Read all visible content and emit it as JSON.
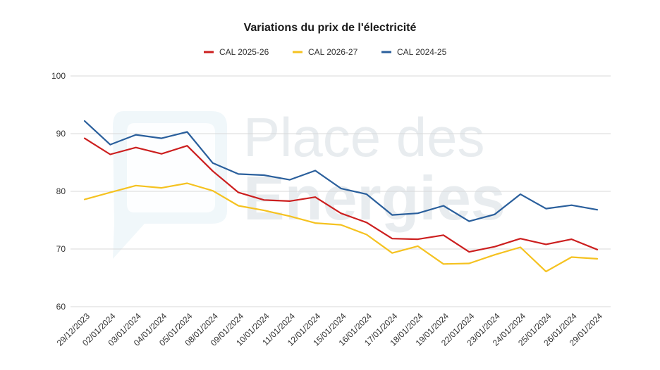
{
  "watermark": {
    "line1": "Place des",
    "line2": "Energies"
  },
  "chart_data": {
    "type": "line",
    "title": "Variations du prix de l'électricité",
    "xlabel": "",
    "ylabel": "",
    "ylim": [
      60,
      100
    ],
    "yticks": [
      60,
      70,
      80,
      90,
      100
    ],
    "grid": true,
    "legend_position": "top",
    "categories": [
      "29/12/2023",
      "02/01/2024",
      "03/01/2024",
      "04/01/2024",
      "05/01/2024",
      "08/01/2024",
      "09/01/2024",
      "10/01/2024",
      "11/01/2024",
      "12/01/2024",
      "15/01/2024",
      "16/01/2024",
      "17/01/2024",
      "18/01/2024",
      "19/01/2024",
      "22/01/2024",
      "23/01/2024",
      "24/01/2024",
      "25/01/2024",
      "26/01/2024",
      "29/01/2024"
    ],
    "series": [
      {
        "name": "CAL 2025-26",
        "color": "#cc1f1f",
        "values": [
          89.2,
          86.4,
          87.6,
          86.5,
          87.9,
          83.5,
          79.8,
          78.5,
          78.3,
          79.0,
          76.2,
          74.6,
          71.8,
          71.7,
          72.4,
          69.5,
          70.4,
          71.8,
          70.8,
          71.7,
          69.9
        ]
      },
      {
        "name": "CAL 2026-27",
        "color": "#f5c220",
        "values": [
          78.6,
          79.8,
          81.0,
          80.6,
          81.4,
          80.1,
          77.5,
          76.7,
          75.7,
          74.5,
          74.2,
          72.5,
          69.3,
          70.5,
          67.4,
          67.5,
          69.0,
          70.3,
          66.1,
          68.6,
          68.3
        ]
      },
      {
        "name": "CAL 2024-25",
        "color": "#2a5f9c",
        "values": [
          92.2,
          88.1,
          89.8,
          89.2,
          90.3,
          84.9,
          83.0,
          82.8,
          82.0,
          83.6,
          80.5,
          79.5,
          75.9,
          76.2,
          77.5,
          74.8,
          76.0,
          79.5,
          77.0,
          77.6,
          76.8
        ]
      }
    ]
  }
}
